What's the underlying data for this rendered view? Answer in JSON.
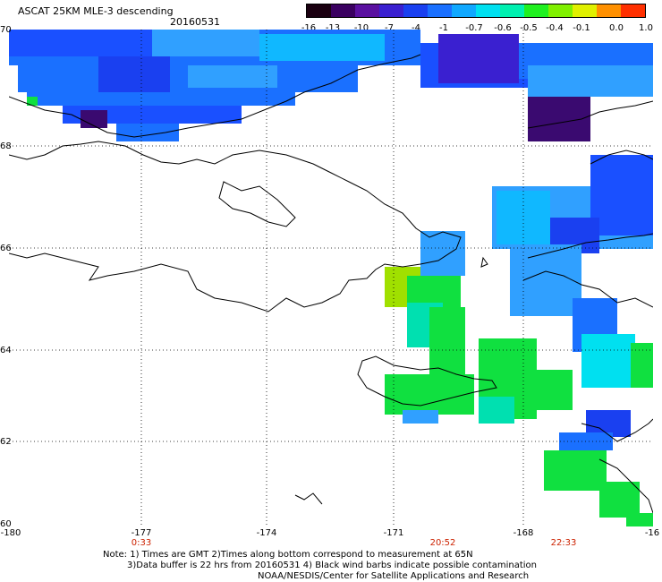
{
  "header": {
    "title": "ASCAT 25KM MLE-3 descending",
    "date": "20160531"
  },
  "colorbar": {
    "labels": [
      "-16",
      "-13",
      "-10",
      "-7",
      "-4",
      "-1",
      "-0.7",
      "-0.6",
      "-0.5",
      "-0.4",
      "-0.1",
      "0.0",
      "1.0"
    ],
    "colors": [
      "#1a0010",
      "#3a0060",
      "#5a10a0",
      "#3a20d0",
      "#1a40f0",
      "#1a70ff",
      "#10a8ff",
      "#00e0f0",
      "#00f0b0",
      "#20f020",
      "#80f000",
      "#e0f000",
      "#ff9000",
      "#ff3000"
    ]
  },
  "axes": {
    "latitudes": [
      "70",
      "68",
      "66",
      "64",
      "62",
      "60"
    ],
    "longitudes": [
      "-180",
      "-177",
      "-174",
      "-171",
      "-168",
      "-16"
    ]
  },
  "times": [
    "0:33",
    "20:52",
    "22:33"
  ],
  "notes": {
    "line1": "Note: 1) Times are GMT 2)Times along bottom correspond to measurement at 65N",
    "line2": "3)Data buffer is 22 hrs from 20160531 4) Black wind barbs indicate possible contamination",
    "line3": "NOAA/NESDIS/Center for Satellite Applications and Research"
  },
  "legend_colors": {
    "deep_purple": "#3a0a70",
    "blue": "#1a50ff",
    "light_blue": "#30a0ff",
    "cyan": "#00e0f0",
    "green": "#10e040",
    "yellow_green": "#a0e000"
  }
}
